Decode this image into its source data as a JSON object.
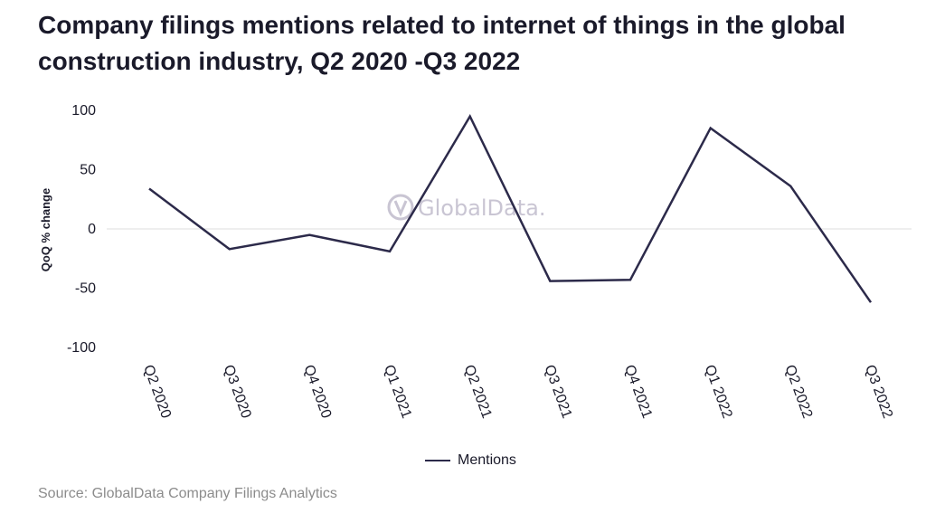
{
  "title": "Company filings mentions related to internet of things in the global construction industry, Q2 2020 -Q3 2022",
  "source": "Source: GlobalData Company Filings Analytics",
  "watermark": "GlobalData.",
  "colors": {
    "series": "#2c2a4a",
    "grid": "#dddddd",
    "text": "#1a1a2a",
    "muted": "#8c8c8c",
    "watermark": "#c9c5d3"
  },
  "chart_data": {
    "type": "line",
    "title": "Company filings mentions related to internet of things in the global construction industry, Q2 2020 -Q3 2022",
    "xlabel": "",
    "ylabel": "QoQ % change",
    "categories": [
      "Q2 2020",
      "Q3 2020",
      "Q4 2020",
      "Q1 2021",
      "Q2 2021",
      "Q3 2021",
      "Q4 2021",
      "Q1 2022",
      "Q2 2022",
      "Q3 2022"
    ],
    "series": [
      {
        "name": "Mentions",
        "values": [
          34,
          -17,
          -5,
          -19,
          95,
          -44,
          -43,
          85,
          36,
          -62
        ]
      }
    ],
    "ylim": [
      -100,
      100
    ],
    "yticks": [
      100,
      50,
      0,
      -50,
      -100
    ],
    "grid": "zero line only",
    "legend_position": "bottom"
  }
}
